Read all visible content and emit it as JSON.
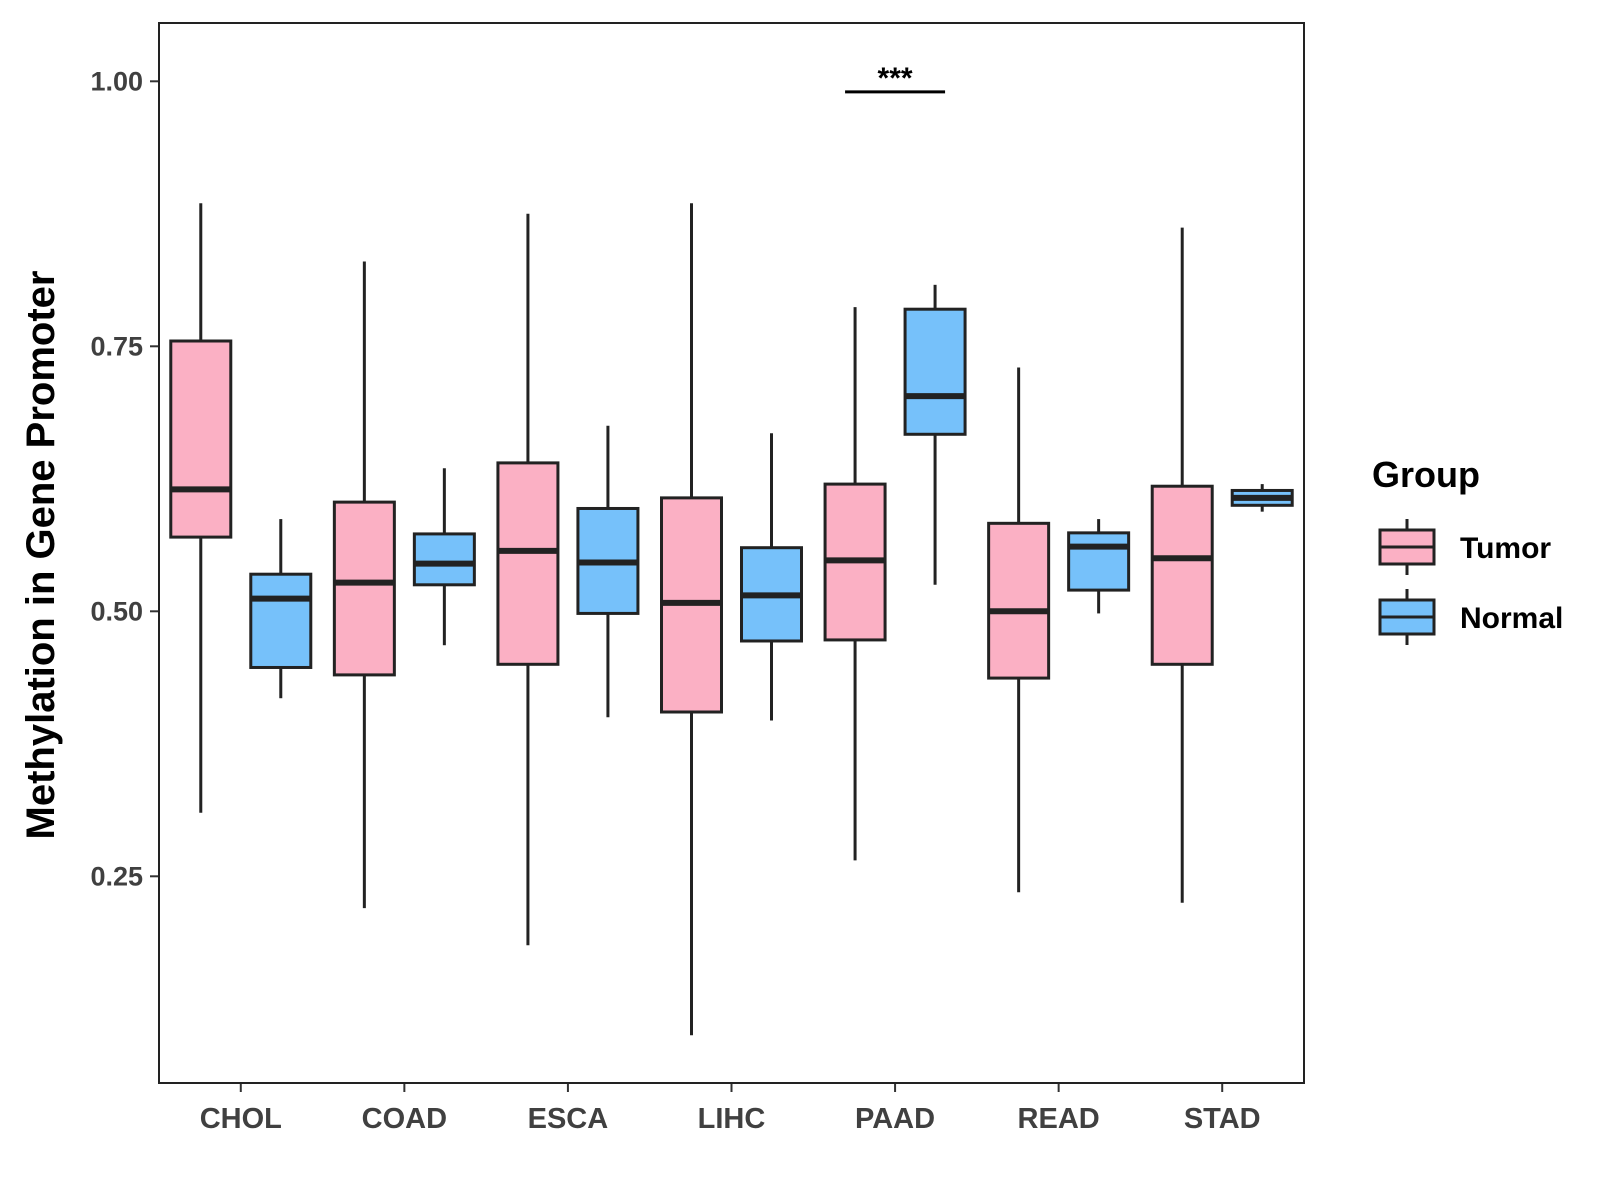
{
  "chart_data": {
    "type": "boxplot",
    "title": "",
    "xlabel": "",
    "ylabel": "Methylation in Gene Promoter",
    "ylim": [
      0.055,
      1.055
    ],
    "yticks": [
      0.25,
      0.5,
      0.75,
      1.0
    ],
    "ytick_labels": [
      "0.25",
      "0.50",
      "0.75",
      "1.00"
    ],
    "categories": [
      "CHOL",
      "COAD",
      "ESCA",
      "LIHC",
      "PAAD",
      "READ",
      "STAD"
    ],
    "legend": {
      "title": "Group",
      "position": "right",
      "entries": [
        "Tumor",
        "Normal"
      ]
    },
    "colors": {
      "Tumor": "#fbb0c4",
      "Normal": "#76c1fa",
      "outline": "#222222"
    },
    "series": [
      {
        "name": "Tumor",
        "boxes": [
          {
            "min": 0.31,
            "q1": 0.57,
            "median": 0.615,
            "q3": 0.755,
            "max": 0.885
          },
          {
            "min": 0.22,
            "q1": 0.44,
            "median": 0.527,
            "q3": 0.603,
            "max": 0.83
          },
          {
            "min": 0.185,
            "q1": 0.45,
            "median": 0.557,
            "q3": 0.64,
            "max": 0.875
          },
          {
            "min": 0.1,
            "q1": 0.405,
            "median": 0.508,
            "q3": 0.607,
            "max": 0.885
          },
          {
            "min": 0.265,
            "q1": 0.473,
            "median": 0.548,
            "q3": 0.62,
            "max": 0.787
          },
          {
            "min": 0.235,
            "q1": 0.437,
            "median": 0.5,
            "q3": 0.583,
            "max": 0.73
          },
          {
            "min": 0.225,
            "q1": 0.45,
            "median": 0.55,
            "q3": 0.618,
            "max": 0.862
          }
        ]
      },
      {
        "name": "Normal",
        "boxes": [
          {
            "min": 0.418,
            "q1": 0.447,
            "median": 0.512,
            "q3": 0.535,
            "max": 0.587
          },
          {
            "min": 0.468,
            "q1": 0.525,
            "median": 0.545,
            "q3": 0.573,
            "max": 0.635
          },
          {
            "min": 0.4,
            "q1": 0.498,
            "median": 0.546,
            "q3": 0.597,
            "max": 0.675
          },
          {
            "min": 0.397,
            "q1": 0.472,
            "median": 0.515,
            "q3": 0.56,
            "max": 0.668
          },
          {
            "min": 0.525,
            "q1": 0.667,
            "median": 0.703,
            "q3": 0.785,
            "max": 0.808
          },
          {
            "min": 0.498,
            "q1": 0.52,
            "median": 0.561,
            "q3": 0.574,
            "max": 0.587
          },
          {
            "min": 0.594,
            "q1": 0.6,
            "median": 0.607,
            "q3": 0.614,
            "max": 0.62
          }
        ]
      }
    ],
    "annotations": [
      {
        "text": "***",
        "category": "PAAD",
        "y": 0.99
      }
    ]
  }
}
